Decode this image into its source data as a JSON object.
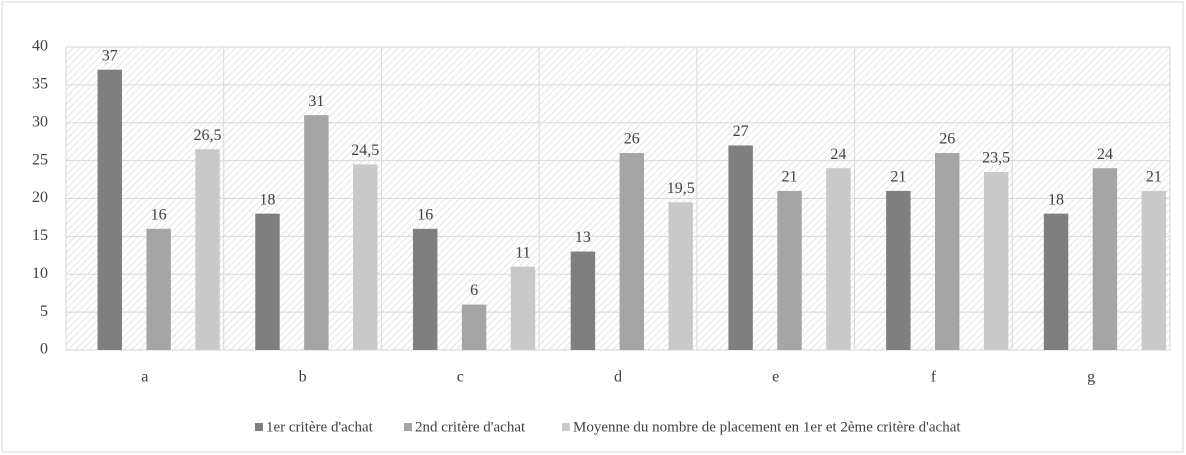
{
  "chart_data": {
    "type": "bar",
    "categories": [
      "a",
      "b",
      "c",
      "d",
      "e",
      "f",
      "g"
    ],
    "series": [
      {
        "name": "1er critère d'achat",
        "color": "#7f7f7f",
        "values": [
          37,
          18,
          16,
          13,
          27,
          21,
          18
        ],
        "value_labels": [
          "37",
          "18",
          "16",
          "13",
          "27",
          "21",
          "18"
        ]
      },
      {
        "name": "2nd critère d'achat",
        "color": "#a5a5a5",
        "values": [
          16,
          31,
          6,
          26,
          21,
          26,
          24
        ],
        "value_labels": [
          "16",
          "31",
          "6",
          "26",
          "21",
          "26",
          "24"
        ]
      },
      {
        "name": "Moyenne du nombre de placement en 1er et 2ème critère d'achat",
        "color": "#c9c9c9",
        "values": [
          26.5,
          24.5,
          11,
          19.5,
          24,
          23.5,
          21
        ],
        "value_labels": [
          "26,5",
          "24,5",
          "11",
          "19,5",
          "24",
          "23,5",
          "21"
        ]
      }
    ],
    "ylim": [
      0,
      40
    ],
    "yticks": [
      0,
      5,
      10,
      15,
      20,
      25,
      30,
      35,
      40
    ],
    "grid": true,
    "legend": "bottom"
  }
}
